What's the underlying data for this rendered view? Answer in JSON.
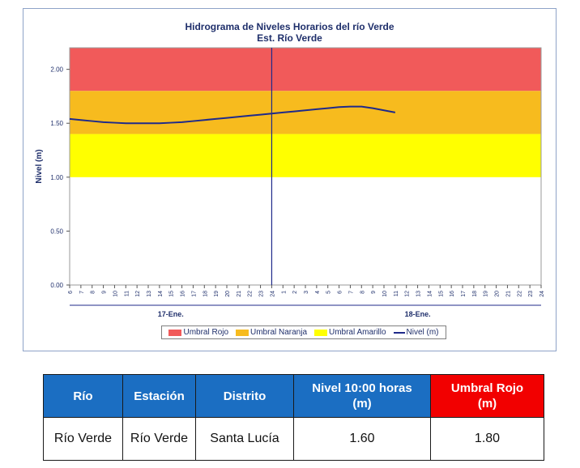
{
  "chart_data": {
    "type": "line",
    "title": "Hidrograma de Niveles Horarios del río Verde",
    "subtitle": "Est. Río Verde",
    "ylabel": "Nivel (m)",
    "ylim": [
      0,
      2.2
    ],
    "yticks": [
      "2.00",
      "1.50",
      "1.00",
      "0.50",
      "0.00"
    ],
    "xticks": [
      "6",
      "7",
      "8",
      "9",
      "10",
      "11",
      "12",
      "13",
      "14",
      "15",
      "16",
      "17",
      "18",
      "19",
      "20",
      "21",
      "22",
      "23",
      "24",
      "1",
      "2",
      "3",
      "4",
      "5",
      "6",
      "7",
      "8",
      "9",
      "10",
      "11",
      "12",
      "13",
      "14",
      "15",
      "16",
      "17",
      "18",
      "19",
      "20",
      "21",
      "22",
      "23",
      "24"
    ],
    "day_labels": [
      "17-Ene.",
      "18-Ene."
    ],
    "bands": [
      {
        "name": "Umbral Rojo",
        "from": 1.8,
        "to": 2.2,
        "color": "#f15a5a"
      },
      {
        "name": "Umbral Naranja",
        "from": 1.4,
        "to": 1.8,
        "color": "#f7bb1e"
      },
      {
        "name": "Umbral Amarillo",
        "from": 1.0,
        "to": 1.4,
        "color": "#ffff00"
      }
    ],
    "series": [
      {
        "name": "Nivel (m)",
        "color": "#1f2a8a",
        "values": [
          1.54,
          1.53,
          1.52,
          1.51,
          1.505,
          1.5,
          1.5,
          1.5,
          1.5,
          1.505,
          1.51,
          1.52,
          1.53,
          1.54,
          1.55,
          1.56,
          1.57,
          1.58,
          1.59,
          1.6,
          1.61,
          1.62,
          1.63,
          1.64,
          1.65,
          1.655,
          1.655,
          1.64,
          1.62,
          1.6
        ]
      }
    ],
    "current_time_index": 18,
    "legend": [
      "Umbral Rojo",
      "Umbral Naranja",
      "Umbral Amarillo",
      "Nivel (m)"
    ]
  },
  "table": {
    "headers": [
      "Río",
      "Estación",
      "Distrito",
      "Nivel 10:00 horas\n(m)",
      "Umbral Rojo\n(m)"
    ],
    "row": [
      "Río Verde",
      "Río Verde",
      "Santa Lucía",
      "1.60",
      "1.80"
    ],
    "header_color": "#1b6ec2",
    "header_red": "#f20000"
  }
}
